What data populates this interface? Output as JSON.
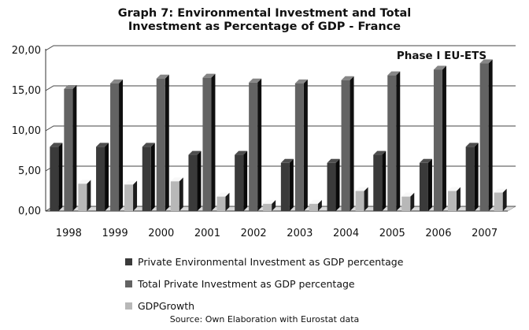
{
  "chart_data": {
    "type": "bar",
    "title_line1": "Graph 7: Environmental Investment and Total",
    "title_line2": "Investment as Percentage of GDP - France",
    "annotation": "Phase I EU-ETS",
    "categories": [
      "1998",
      "1999",
      "2000",
      "2001",
      "2002",
      "2003",
      "2004",
      "2005",
      "2006",
      "2007"
    ],
    "y_ticks": [
      "0,00",
      "5,00",
      "10,00",
      "15,00",
      "20,00"
    ],
    "ylim": [
      0,
      20
    ],
    "series": [
      {
        "name": "Private Environmental Investment as GDP percentage",
        "values": [
          8,
          8,
          8,
          7,
          7,
          6,
          6,
          7,
          6,
          8
        ],
        "color": "#3a3a3a"
      },
      {
        "name": "Total Private Investment as GDP percentage",
        "values": [
          15.2,
          15.9,
          16.5,
          16.6,
          16.0,
          15.9,
          16.3,
          16.9,
          17.6,
          18.4
        ],
        "color": "#636363"
      },
      {
        "name": "GDPGrowth",
        "values": [
          3.4,
          3.3,
          3.7,
          1.8,
          0.9,
          0.9,
          2.5,
          1.8,
          2.5,
          2.3
        ],
        "color": "#b8b8b8"
      }
    ],
    "legend_position": "bottom",
    "source": "Source: Own Elaboration with Eurostat data"
  }
}
